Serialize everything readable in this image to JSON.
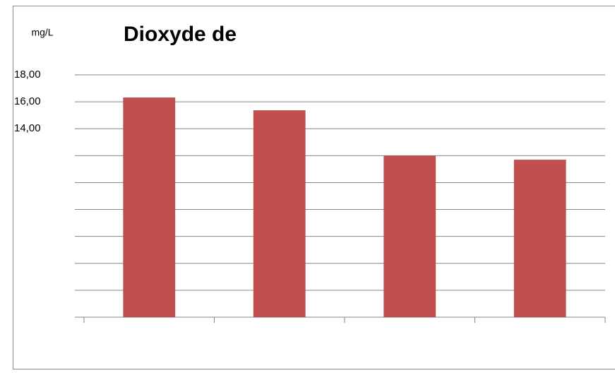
{
  "chart_data": {
    "type": "bar",
    "title": "Dioxyde de",
    "y_label": "mg/L",
    "categories": [
      null,
      null,
      null,
      null
    ],
    "values": [
      16.32,
      15.37,
      12.0,
      11.7
    ],
    "color": "#c0504d",
    "ylim": [
      0,
      18
    ],
    "yticks": [
      {
        "value": 0,
        "label": null
      },
      {
        "value": 2,
        "label": null
      },
      {
        "value": 4,
        "label": null
      },
      {
        "value": 6,
        "label": null
      },
      {
        "value": 8,
        "label": null
      },
      {
        "value": 10,
        "label": null
      },
      {
        "value": 12,
        "label": null
      },
      {
        "value": 14,
        "label": "14,00"
      },
      {
        "value": 16,
        "label": "16,00"
      },
      {
        "value": 18,
        "label": "18,00"
      }
    ],
    "grid": true
  }
}
